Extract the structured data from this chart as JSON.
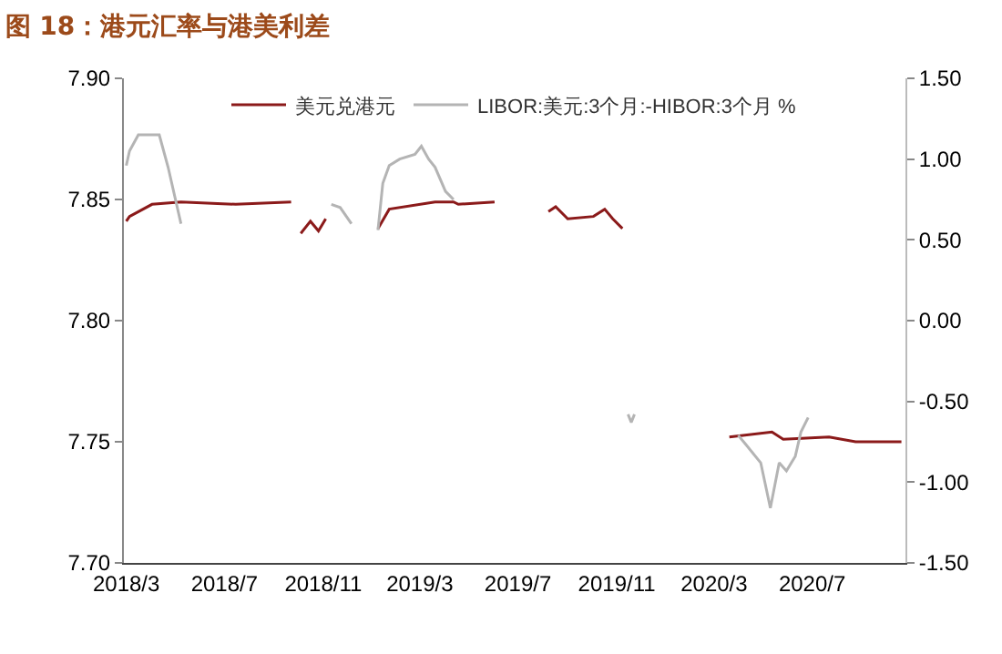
{
  "chart_data": {
    "type": "line",
    "title": "图 18：港元汇率与港美利差",
    "xlim": [
      "2018-02-26",
      "2020-10-25"
    ],
    "xticks": [
      {
        "value": "2018-03-01",
        "label": "2018/3"
      },
      {
        "value": "2018-07-01",
        "label": "2018/7"
      },
      {
        "value": "2018-11-01",
        "label": "2018/11"
      },
      {
        "value": "2019-03-01",
        "label": "2019/3"
      },
      {
        "value": "2019-07-01",
        "label": "2019/7"
      },
      {
        "value": "2019-11-01",
        "label": "2019/11"
      },
      {
        "value": "2020-03-01",
        "label": "2020/3"
      },
      {
        "value": "2020-07-01",
        "label": "2020/7"
      }
    ],
    "ylim": [
      7.7,
      7.9
    ],
    "yticks": [
      {
        "value": 7.7,
        "label": "7.70"
      },
      {
        "value": 7.75,
        "label": "7.75"
      },
      {
        "value": 7.8,
        "label": "7.80"
      },
      {
        "value": 7.85,
        "label": "7.85"
      },
      {
        "value": 7.9,
        "label": "7.90"
      }
    ],
    "y2lim": [
      -1.5,
      1.5
    ],
    "y2ticks": [
      {
        "value": -1.5,
        "label": "-1.50"
      },
      {
        "value": -1,
        "label": "-1.00"
      },
      {
        "value": -0.5,
        "label": "-0.50"
      },
      {
        "value": 0,
        "label": "0.00"
      },
      {
        "value": 0.5,
        "label": "0.50"
      },
      {
        "value": 1,
        "label": "1.00"
      },
      {
        "value": 1.5,
        "label": "1.50"
      }
    ],
    "grid": false,
    "legend": "top",
    "marker": "none",
    "line_style": "solid",
    "series": [
      {
        "name": "美元兑港元",
        "color": "#8b1a1a",
        "x": [
          "2018-03-01",
          "2018-03-05",
          "2018-04-02",
          "2018-05-08",
          "2018-07-15",
          "2018-09-22",
          "2018-09-26",
          "2018-10-04",
          "2018-10-16",
          "2018-10-26",
          "2018-11-04",
          "2018-11-08",
          "2019-01-08",
          "2019-01-22",
          "2019-03-20",
          "2019-04-12",
          "2019-04-18",
          "2019-06-02",
          "2019-06-15",
          "2019-08-08",
          "2019-08-17",
          "2019-09-01",
          "2019-10-03",
          "2019-10-17",
          "2019-10-27",
          "2019-11-08",
          "2019-11-15",
          "2020-03-20",
          "2020-05-12",
          "2020-05-26",
          "2020-07-22",
          "2020-08-24",
          "2020-10-20"
        ],
        "values": [
          7.841,
          7.843,
          7.848,
          7.849,
          7.848,
          7.849,
          null,
          7.836,
          7.841,
          7.837,
          7.842,
          null,
          7.838,
          7.846,
          7.849,
          7.849,
          7.848,
          7.849,
          null,
          7.845,
          7.847,
          7.842,
          7.843,
          7.846,
          7.842,
          7.838,
          null,
          7.752,
          7.754,
          7.751,
          7.752,
          7.75,
          7.75
        ]
      },
      {
        "name": "LIBOR:美元:3个月:-HIBOR:3个月 %",
        "color": "#b4b4b4",
        "axis": "y2",
        "x": [
          "2018-03-01",
          "2018-03-05",
          "2018-03-16",
          "2018-04-11",
          "2018-04-22",
          "2018-05-08",
          "2018-05-12",
          "2018-11-11",
          "2018-11-22",
          "2018-12-06",
          "2018-12-10",
          "2019-01-08",
          "2019-01-14",
          "2019-01-22",
          "2019-02-04",
          "2019-02-23",
          "2019-03-03",
          "2019-03-12",
          "2019-03-20",
          "2019-04-02",
          "2019-04-12",
          "2019-04-18",
          "2019-11-15",
          "2019-11-19",
          "2019-11-23",
          "2019-11-25",
          "2020-03-31",
          "2020-04-10",
          "2020-04-28",
          "2020-05-10",
          "2020-05-21",
          "2020-05-30",
          "2020-06-10",
          "2020-06-17",
          "2020-06-26"
        ],
        "values": [
          0.96,
          1.05,
          1.15,
          1.15,
          0.95,
          0.6,
          null,
          0.72,
          0.7,
          0.6,
          null,
          0.56,
          0.85,
          0.96,
          1.0,
          1.03,
          1.08,
          1.0,
          0.95,
          0.8,
          0.75,
          null,
          -0.58,
          -0.63,
          -0.58,
          null,
          -0.71,
          -0.77,
          -0.88,
          -1.16,
          -0.88,
          -0.93,
          -0.84,
          -0.69,
          -0.6
        ]
      }
    ]
  }
}
